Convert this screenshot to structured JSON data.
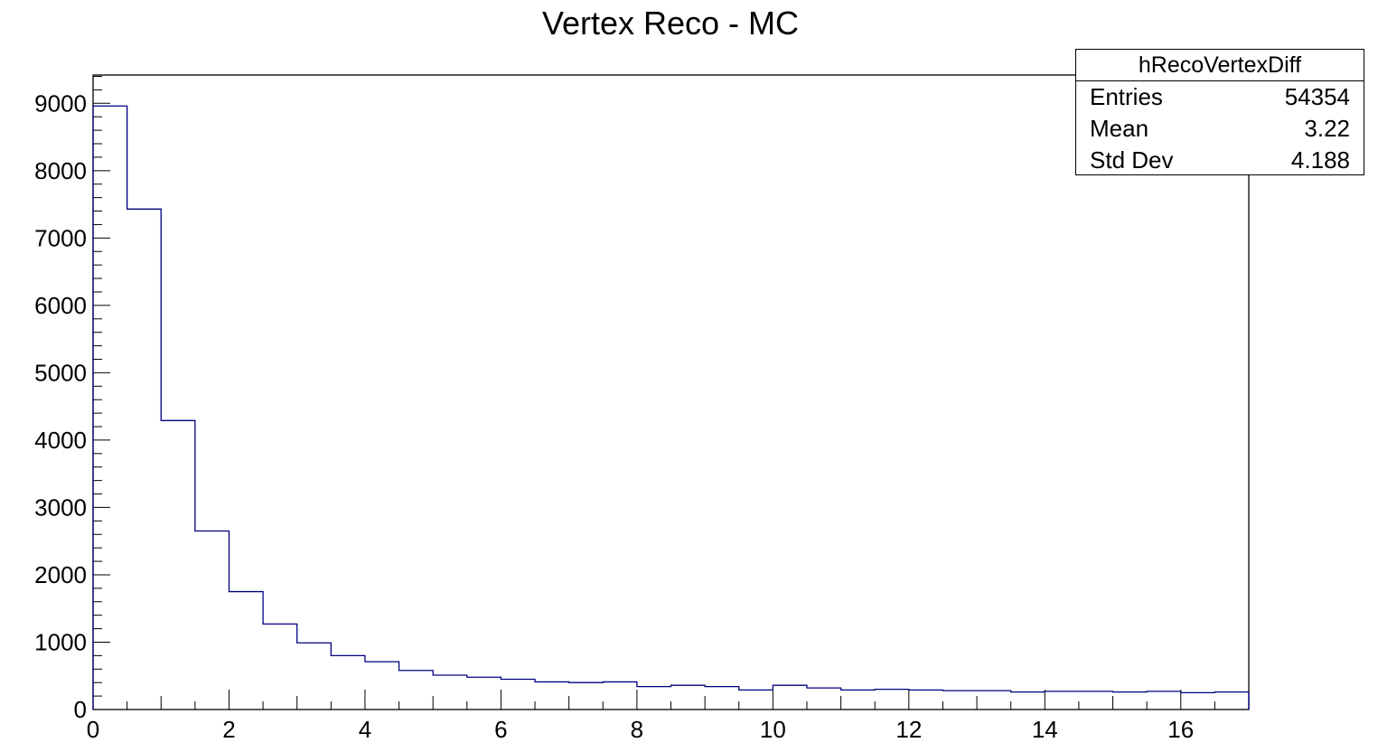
{
  "chart_data": {
    "type": "histogram",
    "title": "Vertex Reco - MC",
    "xlabel": "",
    "ylabel": "",
    "xlim": [
      0,
      17
    ],
    "ylim": [
      0,
      9420
    ],
    "x_ticks": [
      0,
      2,
      4,
      6,
      8,
      10,
      12,
      14,
      16
    ],
    "y_ticks": [
      0,
      1000,
      2000,
      3000,
      4000,
      5000,
      6000,
      7000,
      8000,
      9000
    ],
    "bin_width": 0.5,
    "bin_edges_start": 0,
    "values": [
      8960,
      7430,
      4290,
      2650,
      1750,
      1270,
      990,
      800,
      710,
      580,
      510,
      480,
      450,
      410,
      400,
      410,
      340,
      360,
      340,
      290,
      360,
      320,
      290,
      300,
      290,
      280,
      280,
      260,
      270,
      270,
      260,
      270,
      250,
      260
    ],
    "line_color": "#000080",
    "legend_position": "top-right"
  },
  "stats": {
    "name": "hRecoVertexDiff",
    "entries_label": "Entries",
    "entries_value": "54354",
    "mean_label": "Mean",
    "mean_value": "3.22",
    "stddev_label": "Std Dev",
    "stddev_value": "4.188"
  }
}
